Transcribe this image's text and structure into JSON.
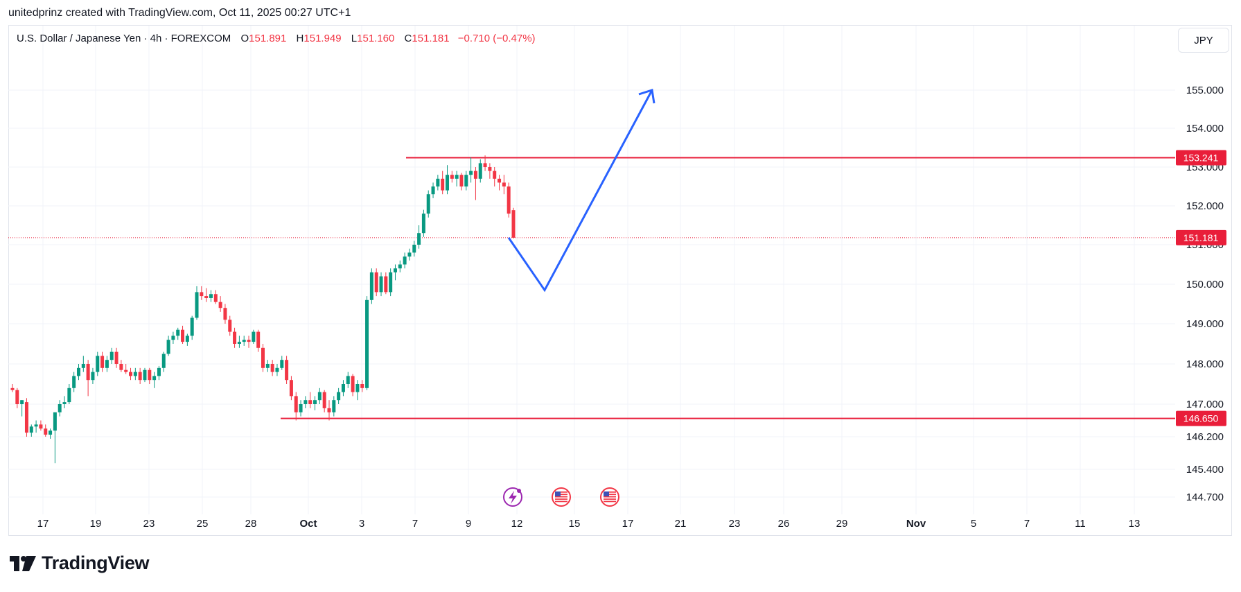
{
  "header": {
    "attribution": "unitedprinz created with TradingView.com, Oct 11, 2025 00:27 UTC+1"
  },
  "legend": {
    "symbol": "U.S. Dollar / Japanese Yen · 4h · FOREXCOM",
    "open_label": "O",
    "open": "151.891",
    "high_label": "H",
    "high": "151.949",
    "low_label": "L",
    "low": "151.160",
    "close_label": "C",
    "close": "151.181",
    "change": "−0.710 (−0.47%)"
  },
  "currency": "JPY",
  "brand": "TradingView",
  "colors": {
    "up": "#089981",
    "down": "#f23645",
    "line": "#e91e3a",
    "arrow": "#2962ff",
    "event_purple": "#9c27b0"
  },
  "chart_data": {
    "type": "candlestick",
    "y_ticks": [
      "155.000",
      "154.000",
      "153.000",
      "152.000",
      "151.000",
      "150.000",
      "149.000",
      "148.000",
      "147.000",
      "146.200",
      "145.400",
      "144.700"
    ],
    "x_ticks": [
      "17",
      "19",
      "23",
      "25",
      "28",
      "Oct",
      "3",
      "7",
      "9",
      "12",
      "15",
      "17",
      "21",
      "23",
      "26",
      "29",
      "Nov",
      "5",
      "7",
      "11",
      "13"
    ],
    "horizontal_levels": [
      {
        "price": 153.241,
        "label": "153.241"
      },
      {
        "price": 146.65,
        "label": "146.650"
      }
    ],
    "last_price": {
      "price": 151.181,
      "label": "151.181"
    },
    "projection_path": [
      {
        "date": "Oct 12",
        "price": 151.181
      },
      {
        "date": "Oct 14",
        "price": 149.85
      },
      {
        "date": "Oct 18",
        "price": 155.0
      }
    ],
    "candles": [
      [
        147.4,
        147.5,
        147.3,
        147.35
      ],
      [
        147.35,
        147.4,
        146.9,
        147.0
      ],
      [
        147.0,
        147.1,
        146.7,
        147.1
      ],
      [
        147.05,
        147.15,
        146.2,
        146.3
      ],
      [
        146.3,
        146.5,
        146.2,
        146.45
      ],
      [
        146.45,
        146.6,
        146.3,
        146.5
      ],
      [
        146.5,
        146.6,
        146.35,
        146.4
      ],
      [
        146.4,
        146.5,
        146.2,
        146.25
      ],
      [
        146.25,
        146.4,
        146.15,
        146.35
      ],
      [
        146.35,
        146.8,
        145.55,
        146.8
      ],
      [
        146.8,
        147.1,
        146.7,
        147.0
      ],
      [
        147.0,
        147.2,
        146.9,
        147.05
      ],
      [
        147.05,
        147.5,
        147.0,
        147.4
      ],
      [
        147.4,
        147.8,
        147.3,
        147.7
      ],
      [
        147.7,
        148.0,
        147.6,
        147.9
      ],
      [
        147.9,
        148.2,
        147.8,
        148.0
      ],
      [
        148.0,
        148.1,
        147.2,
        147.6
      ],
      [
        147.6,
        147.9,
        147.5,
        147.8
      ],
      [
        147.8,
        148.3,
        147.7,
        148.2
      ],
      [
        148.2,
        148.3,
        147.8,
        147.9
      ],
      [
        147.9,
        148.2,
        147.8,
        148.1
      ],
      [
        148.1,
        148.4,
        148.0,
        148.3
      ],
      [
        148.3,
        148.4,
        147.9,
        148.0
      ],
      [
        148.0,
        148.1,
        147.8,
        147.85
      ],
      [
        147.85,
        148.0,
        147.75,
        147.8
      ],
      [
        147.8,
        147.9,
        147.6,
        147.7
      ],
      [
        147.7,
        147.9,
        147.6,
        147.8
      ],
      [
        147.8,
        147.9,
        147.5,
        147.6
      ],
      [
        147.6,
        147.9,
        147.55,
        147.85
      ],
      [
        147.85,
        147.9,
        147.5,
        147.6
      ],
      [
        147.6,
        147.8,
        147.4,
        147.7
      ],
      [
        147.7,
        147.95,
        147.6,
        147.9
      ],
      [
        147.9,
        148.3,
        147.8,
        148.25
      ],
      [
        148.25,
        148.7,
        148.2,
        148.6
      ],
      [
        148.6,
        148.8,
        148.5,
        148.7
      ],
      [
        148.7,
        148.9,
        148.6,
        148.85
      ],
      [
        148.85,
        148.95,
        148.5,
        148.55
      ],
      [
        148.55,
        148.75,
        148.45,
        148.7
      ],
      [
        148.7,
        149.2,
        148.6,
        149.15
      ],
      [
        149.15,
        149.95,
        149.1,
        149.8
      ],
      [
        149.8,
        149.95,
        149.6,
        149.7
      ],
      [
        149.7,
        149.9,
        149.55,
        149.65
      ],
      [
        149.65,
        149.85,
        149.55,
        149.75
      ],
      [
        149.75,
        149.85,
        149.5,
        149.55
      ],
      [
        149.55,
        149.7,
        149.3,
        149.4
      ],
      [
        149.4,
        149.5,
        149.0,
        149.1
      ],
      [
        149.1,
        149.2,
        148.7,
        148.8
      ],
      [
        148.8,
        148.9,
        148.4,
        148.5
      ],
      [
        148.5,
        148.7,
        148.4,
        148.55
      ],
      [
        148.55,
        148.7,
        148.45,
        148.6
      ],
      [
        148.6,
        148.7,
        148.4,
        148.55
      ],
      [
        148.55,
        148.85,
        148.5,
        148.8
      ],
      [
        148.8,
        148.85,
        148.3,
        148.4
      ],
      [
        148.4,
        148.5,
        147.8,
        147.9
      ],
      [
        147.9,
        148.1,
        147.8,
        148.0
      ],
      [
        148.0,
        148.1,
        147.7,
        147.8
      ],
      [
        147.8,
        148.0,
        147.7,
        147.9
      ],
      [
        147.9,
        148.2,
        147.85,
        148.1
      ],
      [
        148.1,
        148.2,
        147.5,
        147.6
      ],
      [
        147.6,
        147.7,
        147.1,
        147.2
      ],
      [
        147.2,
        147.3,
        146.6,
        146.8
      ],
      [
        146.8,
        147.1,
        146.7,
        147.0
      ],
      [
        147.0,
        147.2,
        146.9,
        147.1
      ],
      [
        147.1,
        147.3,
        146.9,
        147.0
      ],
      [
        147.0,
        147.2,
        146.85,
        147.1
      ],
      [
        147.1,
        147.4,
        147.0,
        147.3
      ],
      [
        147.3,
        147.35,
        146.8,
        146.9
      ],
      [
        146.9,
        147.1,
        146.6,
        146.8
      ],
      [
        146.8,
        147.2,
        146.7,
        147.1
      ],
      [
        147.1,
        147.4,
        147.0,
        147.3
      ],
      [
        147.3,
        147.6,
        147.2,
        147.5
      ],
      [
        147.5,
        147.8,
        147.4,
        147.7
      ],
      [
        147.7,
        147.75,
        147.2,
        147.3
      ],
      [
        147.3,
        147.6,
        147.1,
        147.5
      ],
      [
        147.5,
        147.6,
        147.3,
        147.4
      ],
      [
        147.4,
        149.7,
        147.35,
        149.6
      ],
      [
        149.6,
        150.4,
        149.5,
        150.3
      ],
      [
        150.3,
        150.4,
        149.7,
        149.8
      ],
      [
        149.8,
        150.3,
        149.7,
        150.2
      ],
      [
        150.2,
        150.3,
        149.75,
        149.8
      ],
      [
        149.8,
        150.4,
        149.7,
        150.3
      ],
      [
        150.3,
        150.5,
        150.1,
        150.4
      ],
      [
        150.4,
        150.6,
        150.3,
        150.5
      ],
      [
        150.5,
        150.8,
        150.4,
        150.7
      ],
      [
        150.7,
        150.9,
        150.6,
        150.8
      ],
      [
        150.8,
        151.1,
        150.7,
        151.0
      ],
      [
        151.0,
        151.5,
        150.9,
        151.3
      ],
      [
        151.3,
        151.9,
        151.2,
        151.8
      ],
      [
        151.8,
        152.4,
        151.7,
        152.3
      ],
      [
        152.3,
        152.6,
        152.2,
        152.5
      ],
      [
        152.5,
        152.8,
        152.4,
        152.7
      ],
      [
        152.7,
        152.9,
        152.3,
        152.4
      ],
      [
        152.4,
        153.05,
        152.3,
        152.8
      ],
      [
        152.8,
        152.9,
        152.6,
        152.7
      ],
      [
        152.7,
        152.9,
        152.5,
        152.8
      ],
      [
        152.8,
        152.85,
        152.4,
        152.5
      ],
      [
        152.5,
        152.9,
        152.4,
        152.8
      ],
      [
        152.8,
        153.25,
        152.6,
        152.9
      ],
      [
        152.9,
        153.0,
        152.15,
        152.7
      ],
      [
        152.7,
        153.2,
        152.6,
        153.1
      ],
      [
        153.1,
        153.3,
        152.9,
        153.0
      ],
      [
        153.0,
        153.1,
        152.7,
        152.9
      ],
      [
        152.9,
        153.0,
        152.5,
        152.7
      ],
      [
        152.7,
        152.8,
        152.4,
        152.6
      ],
      [
        152.6,
        152.8,
        152.3,
        152.5
      ],
      [
        152.5,
        152.6,
        151.7,
        151.8
      ],
      [
        151.89,
        151.95,
        151.16,
        151.18
      ]
    ]
  }
}
